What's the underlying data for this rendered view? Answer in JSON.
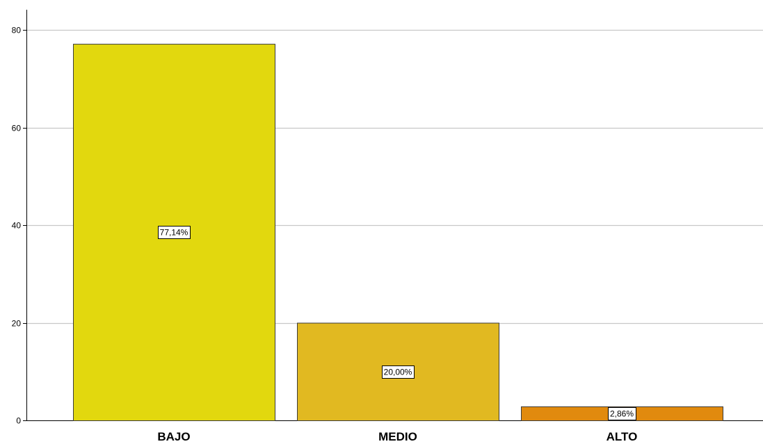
{
  "chart_data": {
    "type": "bar",
    "title": "",
    "xlabel": "",
    "ylabel": "",
    "categories": [
      "BAJO",
      "MEDIO",
      "ALTO"
    ],
    "values": [
      77.14,
      20.0,
      2.86
    ],
    "data_labels": [
      "77,14%",
      "20,00%",
      "2,86%"
    ],
    "colors": [
      "#e2d80e",
      "#e1b921",
      "#e18a0e"
    ],
    "ylim": [
      0,
      80
    ],
    "yticks": [
      0,
      20,
      40,
      60,
      80
    ],
    "ytick_labels": [
      "0",
      "20",
      "40",
      "60",
      "80"
    ],
    "grid": true,
    "legend": "none"
  }
}
